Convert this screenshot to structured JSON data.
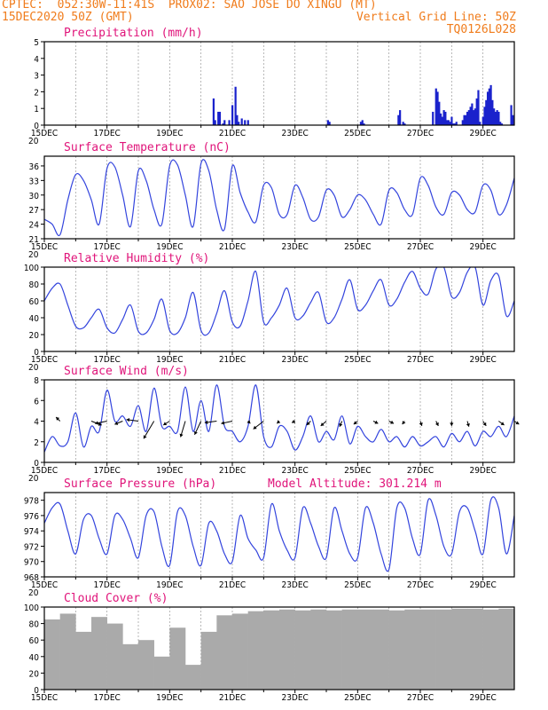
{
  "header": {
    "line1_left": "CPTEC:  052:30W-11:41S  PROX02: SAO JOSE DO XINGU (MT)",
    "line2_left": "15DEC2020 50Z (GMT)",
    "line2_right": "Vertical Grid Line: 50Z",
    "line3_right": "TQ0126L028"
  },
  "colors": {
    "line": "#3344dd",
    "bar": "#1a22cc",
    "cloud": "#aaaaaa",
    "title": "#e0147a",
    "header": "#f07c1c",
    "grid": "#999999"
  },
  "x_ticks": [
    "15DEC",
    "17DEC",
    "19DEC",
    "21DEC",
    "23DEC",
    "25DEC",
    "27DEC",
    "29DEC"
  ],
  "cut_label": "20",
  "chart_data": [
    {
      "type": "bar",
      "title": "Precipitation (mm/h)",
      "ylim": [
        0,
        5
      ],
      "yticks": [
        "0",
        "1",
        "2",
        "3",
        "4",
        "5"
      ],
      "x_unit": "days since 15DEC 00Z",
      "series": [
        {
          "x": [
            5.4,
            5.45,
            5.55,
            5.6,
            5.7,
            5.75,
            5.9,
            6.0,
            6.1,
            6.15,
            6.2,
            6.3,
            6.4,
            6.5,
            9.05,
            9.1,
            10.1,
            10.15,
            10.2,
            11.3,
            11.35,
            11.45,
            11.5,
            12.4,
            12.5,
            12.55,
            12.6,
            12.65,
            12.7,
            12.75,
            12.8,
            12.85,
            12.9,
            12.95,
            13.0,
            13.05,
            13.1,
            13.15,
            13.35,
            13.4,
            13.45,
            13.5,
            13.55,
            13.6,
            13.65,
            13.7,
            13.75,
            13.8,
            13.85,
            13.9,
            14.0,
            14.05,
            14.1,
            14.15,
            14.2,
            14.25,
            14.3,
            14.35,
            14.4,
            14.45,
            14.5,
            14.55,
            14.6,
            14.9,
            14.95
          ],
          "values": [
            1.6,
            0.3,
            0.8,
            0.8,
            0.1,
            0.3,
            0.3,
            1.2,
            2.3,
            0.6,
            0.2,
            0.4,
            0.3,
            0.3,
            0.3,
            0.2,
            0.2,
            0.3,
            0.1,
            0.6,
            0.9,
            0.2,
            0.1,
            0.8,
            2.2,
            2.0,
            1.4,
            0.7,
            0.5,
            0.9,
            0.8,
            0.3,
            0.3,
            0.2,
            0.5,
            0.1,
            0.1,
            0.2,
            0.3,
            0.6,
            0.6,
            0.8,
            0.9,
            1.1,
            1.3,
            0.9,
            1.0,
            1.6,
            2.1,
            0.2,
            0.5,
            1.1,
            1.5,
            2.0,
            2.2,
            2.4,
            1.5,
            1.0,
            0.8,
            0.9,
            0.8,
            0.2,
            0.1,
            1.2,
            0.6
          ]
        }
      ]
    },
    {
      "type": "line",
      "title": "Surface Temperature (nC)",
      "ylim": [
        21,
        38
      ],
      "yticks": [
        "21",
        "24",
        "27",
        "30",
        "33",
        "36"
      ],
      "series": [
        {
          "x": [
            0,
            0.25,
            0.5,
            0.75,
            1.0,
            1.25,
            1.5,
            1.75,
            2.0,
            2.25,
            2.5,
            2.75,
            3.0,
            3.25,
            3.5,
            3.75,
            4.0,
            4.25,
            4.5,
            4.75,
            5.0,
            5.25,
            5.5,
            5.75,
            6.0,
            6.25,
            6.5,
            6.75,
            7.0,
            7.25,
            7.5,
            7.75,
            8.0,
            8.25,
            8.5,
            8.75,
            9.0,
            9.25,
            9.5,
            9.75,
            10.0,
            10.25,
            10.5,
            10.75,
            11.0,
            11.25,
            11.5,
            11.75,
            12.0,
            12.25,
            12.5,
            12.75,
            13.0,
            13.25,
            13.5,
            13.75,
            14.0,
            14.25,
            14.5,
            14.75,
            15.0
          ],
          "values": [
            25,
            24,
            21.8,
            29,
            34.2,
            33,
            29,
            24,
            35.5,
            35.8,
            30,
            23.5,
            35,
            33,
            27,
            24,
            36,
            36.2,
            30,
            23.5,
            36.5,
            35,
            27,
            23,
            36,
            30.5,
            26.5,
            24.5,
            32,
            31.5,
            26,
            26,
            32,
            29.5,
            25,
            25.5,
            31,
            30,
            25.5,
            27,
            30,
            29,
            26,
            24,
            31,
            30.5,
            27,
            26,
            33.5,
            32,
            27.5,
            26,
            30.5,
            30,
            27,
            26.5,
            32,
            31,
            26,
            28,
            33.5
          ]
        }
      ]
    },
    {
      "type": "line",
      "title": "Relative Humidity (%)",
      "ylim": [
        0,
        100
      ],
      "yticks": [
        "0",
        "20",
        "40",
        "60",
        "80",
        "100"
      ],
      "series": [
        {
          "x": [
            0,
            0.25,
            0.5,
            0.75,
            1.0,
            1.25,
            1.5,
            1.75,
            2.0,
            2.25,
            2.5,
            2.75,
            3.0,
            3.25,
            3.5,
            3.75,
            4.0,
            4.25,
            4.5,
            4.75,
            5.0,
            5.25,
            5.5,
            5.75,
            6.0,
            6.25,
            6.5,
            6.75,
            7.0,
            7.25,
            7.5,
            7.75,
            8.0,
            8.25,
            8.5,
            8.75,
            9.0,
            9.25,
            9.5,
            9.75,
            10.0,
            10.25,
            10.5,
            10.75,
            11.0,
            11.25,
            11.5,
            11.75,
            12.0,
            12.25,
            12.5,
            12.75,
            13.0,
            13.25,
            13.5,
            13.75,
            14.0,
            14.25,
            14.5,
            14.75,
            15.0
          ],
          "values": [
            60,
            75,
            80,
            55,
            30,
            28,
            40,
            50,
            28,
            22,
            38,
            55,
            24,
            22,
            38,
            62,
            25,
            22,
            40,
            70,
            25,
            22,
            45,
            72,
            35,
            30,
            60,
            95,
            35,
            40,
            55,
            75,
            40,
            42,
            58,
            70,
            35,
            40,
            62,
            85,
            50,
            55,
            72,
            85,
            55,
            62,
            82,
            95,
            75,
            68,
            98,
            100,
            65,
            70,
            94,
            100,
            55,
            84,
            90,
            42,
            60
          ]
        }
      ]
    },
    {
      "type": "line",
      "title": "Surface Wind (m/s)",
      "ylim": [
        0,
        8
      ],
      "yticks": [
        "0",
        "2",
        "4",
        "6",
        "8"
      ],
      "series": [
        {
          "x": [
            0,
            0.25,
            0.5,
            0.75,
            1.0,
            1.25,
            1.5,
            1.75,
            2.0,
            2.25,
            2.5,
            2.75,
            3.0,
            3.25,
            3.5,
            3.75,
            4.0,
            4.25,
            4.5,
            4.75,
            5.0,
            5.25,
            5.5,
            5.75,
            6.0,
            6.25,
            6.5,
            6.75,
            7.0,
            7.25,
            7.5,
            7.75,
            8.0,
            8.25,
            8.5,
            8.75,
            9.0,
            9.25,
            9.5,
            9.75,
            10.0,
            10.25,
            10.5,
            10.75,
            11.0,
            11.25,
            11.5,
            11.75,
            12.0,
            12.25,
            12.5,
            12.75,
            13.0,
            13.25,
            13.5,
            13.75,
            14.0,
            14.25,
            14.5,
            14.75,
            15.0
          ],
          "values": [
            1.0,
            2.5,
            1.6,
            2.0,
            4.8,
            1.5,
            3.5,
            3.0,
            7.0,
            4.0,
            4.5,
            3.5,
            5.5,
            3.0,
            7.2,
            3.5,
            3.5,
            3.0,
            7.3,
            3.0,
            6.0,
            3.0,
            7.5,
            3.5,
            3.0,
            2.0,
            3.5,
            7.5,
            2.5,
            1.5,
            3.5,
            3.0,
            1.2,
            2.5,
            4.5,
            2.0,
            3.0,
            2.2,
            4.5,
            1.8,
            3.5,
            2.5,
            2.0,
            3.2,
            2.0,
            2.5,
            1.5,
            2.5,
            1.6,
            2.0,
            2.5,
            1.5,
            2.8,
            2.0,
            3.0,
            1.6,
            3.0,
            2.5,
            3.5,
            2.5,
            4.5
          ]
        }
      ],
      "wind_arrows": {
        "x": [
          0.5,
          1.5,
          2.0,
          2.5,
          3.0,
          3.5,
          4.0,
          4.5,
          5.0,
          5.5,
          6.0,
          6.5,
          7.0,
          7.5,
          8.0,
          8.5,
          9.0,
          9.5,
          10.0,
          10.5,
          11.0,
          11.5,
          12.0,
          12.5,
          13.0,
          13.5,
          14.0,
          14.5,
          15.0
        ],
        "u": [
          -0.5,
          1.3,
          -1.5,
          -1.0,
          -1.5,
          -1.3,
          -0.8,
          -0.6,
          -0.8,
          -1.5,
          -1.4,
          0.3,
          -1.3,
          -0.3,
          -0.4,
          -0.5,
          -0.7,
          -0.3,
          -0.5,
          0.6,
          0.6,
          -0.3,
          0.2,
          0.3,
          0.0,
          0.2,
          0.4,
          0.7,
          0.6
        ],
        "v": [
          0.5,
          -0.5,
          -0.3,
          -0.4,
          0.2,
          -2.2,
          -0.5,
          -2.0,
          -1.7,
          -0.2,
          -0.3,
          -0.3,
          -1.0,
          -0.3,
          -0.2,
          -0.5,
          -0.6,
          -0.7,
          -0.4,
          -0.3,
          -0.3,
          -0.4,
          -0.6,
          -0.6,
          -0.6,
          -0.7,
          -0.6,
          -0.5,
          -0.4
        ]
      }
    },
    {
      "type": "line",
      "title": "Surface Pressure (hPa)",
      "annotation": "Model Altitude: 301.214 m",
      "ylim": [
        968,
        979
      ],
      "yticks": [
        "968",
        "970",
        "972",
        "974",
        "976",
        "978"
      ],
      "series": [
        {
          "x": [
            0,
            0.25,
            0.5,
            0.75,
            1.0,
            1.25,
            1.5,
            1.75,
            2.0,
            2.25,
            2.5,
            2.75,
            3.0,
            3.25,
            3.5,
            3.75,
            4.0,
            4.25,
            4.5,
            4.75,
            5.0,
            5.25,
            5.5,
            5.75,
            6.0,
            6.25,
            6.5,
            6.75,
            7.0,
            7.25,
            7.5,
            7.75,
            8.0,
            8.25,
            8.5,
            8.75,
            9.0,
            9.25,
            9.5,
            9.75,
            10.0,
            10.25,
            10.5,
            10.75,
            11.0,
            11.25,
            11.5,
            11.75,
            12.0,
            12.25,
            12.5,
            12.75,
            13.0,
            13.25,
            13.5,
            13.75,
            14.0,
            14.25,
            14.5,
            14.75,
            15.0
          ],
          "values": [
            975,
            977,
            977.5,
            974,
            971,
            975.5,
            976,
            973,
            971,
            976,
            975.5,
            973,
            970.5,
            976,
            976.5,
            972,
            969.5,
            976.5,
            976,
            972,
            969.5,
            975,
            974,
            971,
            970,
            976,
            973,
            971.5,
            970.5,
            977.5,
            974,
            971.5,
            970.5,
            977,
            975,
            972,
            970.5,
            977,
            974,
            971,
            970.5,
            977,
            975,
            971,
            969,
            977,
            977,
            973,
            971,
            978,
            976,
            972,
            971,
            976.5,
            977,
            974,
            971,
            978,
            977,
            971,
            976
          ]
        }
      ]
    },
    {
      "type": "bar",
      "title": "Cloud Cover (%)",
      "ylim": [
        0,
        100
      ],
      "yticks": [
        "0",
        "20",
        "40",
        "60",
        "80",
        "100"
      ],
      "series": [
        {
          "x": [
            0,
            0.5,
            1.0,
            1.5,
            2.0,
            2.5,
            3.0,
            3.5,
            4.0,
            4.5,
            5.0,
            5.5,
            6.0,
            6.5,
            7.0,
            7.5,
            8.0,
            8.5,
            9.0,
            9.5,
            10.0,
            10.5,
            11.0,
            11.5,
            12.0,
            12.5,
            13.0,
            13.5,
            14.0,
            14.5
          ],
          "values": [
            85,
            92,
            70,
            88,
            80,
            55,
            60,
            40,
            75,
            30,
            70,
            90,
            92,
            95,
            96,
            97,
            96,
            97,
            96,
            97,
            97,
            97,
            96,
            97,
            97,
            97,
            98,
            98,
            97,
            98
          ]
        }
      ]
    }
  ]
}
